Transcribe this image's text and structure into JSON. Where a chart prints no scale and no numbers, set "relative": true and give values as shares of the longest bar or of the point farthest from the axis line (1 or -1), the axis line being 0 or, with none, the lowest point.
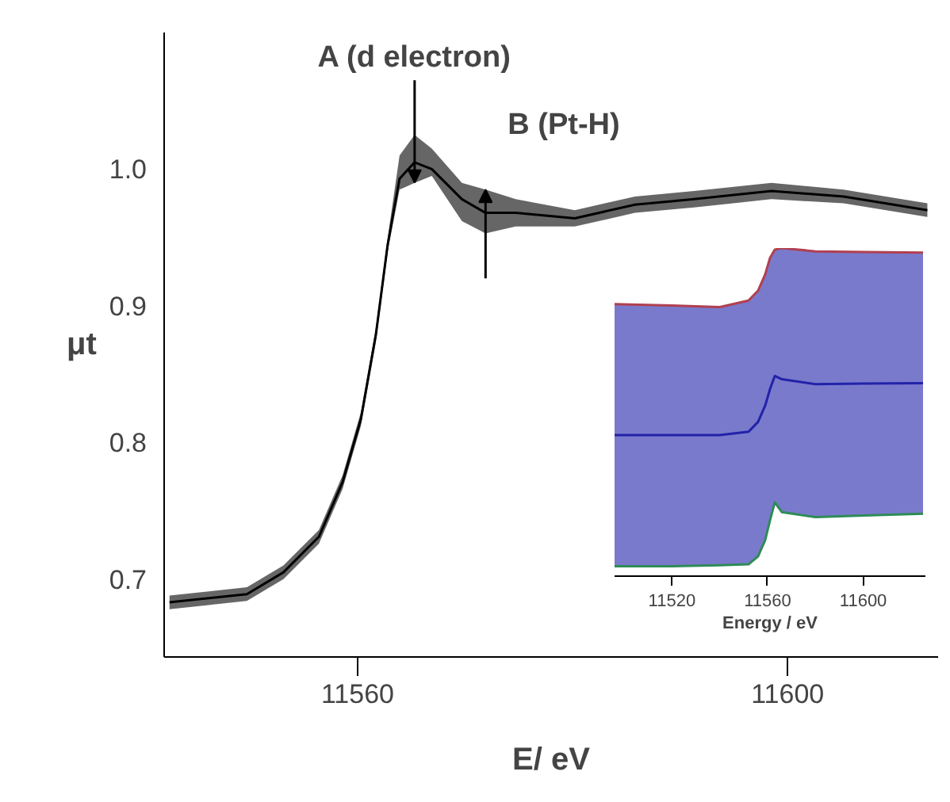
{
  "chart_data": [
    {
      "type": "line",
      "xlabel": "E/ eV",
      "ylabel": "μt",
      "x": [
        11542.5,
        11549.7,
        11553.1,
        11556.4,
        11558.6,
        11560.3,
        11561.7,
        11562.8,
        11563.9,
        11565.3,
        11566.9,
        11569.7,
        11571.9,
        11574.7,
        11580.2,
        11585.8,
        11591.3,
        11598.5,
        11605.2,
        11613
      ],
      "series": [
        {
          "color": "#000000",
          "values": [
            0.683,
            0.689,
            0.705,
            0.731,
            0.771,
            0.817,
            0.879,
            0.945,
            0.993,
            1.005,
            1.0,
            0.978,
            0.968,
            0.968,
            0.964,
            0.974,
            0.978,
            0.984,
            0.98,
            0.97
          ],
          "lower": [
            0.678,
            0.684,
            0.7,
            0.726,
            0.766,
            0.812,
            0.874,
            0.94,
            0.985,
            0.99,
            0.995,
            0.962,
            0.953,
            0.958,
            0.958,
            0.968,
            0.972,
            0.978,
            0.975,
            0.965
          ],
          "upper": [
            0.688,
            0.694,
            0.71,
            0.736,
            0.776,
            0.822,
            0.884,
            0.95,
            1.01,
            1.025,
            1.015,
            0.99,
            0.985,
            0.978,
            0.97,
            0.98,
            0.984,
            0.99,
            0.985,
            0.975
          ]
        }
      ],
      "xlim": [
        11542,
        11614
      ],
      "ylim": [
        0.643,
        1.1
      ],
      "xticks": [
        11560,
        11600
      ],
      "yticks": [
        {
          "value": 0.7,
          "label": "0.7"
        },
        {
          "value": 0.8,
          "label": "0.8"
        },
        {
          "value": 0.9,
          "label": "0.9"
        },
        {
          "value": 1.0,
          "label": "1.0"
        }
      ],
      "annotations": [
        {
          "text": "A (d electron)",
          "x": 11565.3,
          "y": 0.99
        },
        {
          "text": "B (Pt-H)",
          "x": 11571.9,
          "y": 0.985
        }
      ]
    },
    {
      "type": "line",
      "relative": true,
      "xlabel": "Energy / eV",
      "tick_labels": "x",
      "x": [
        11496,
        11520,
        11540,
        11552,
        11556,
        11559,
        11561,
        11563,
        11566,
        11580,
        11600,
        11625
      ],
      "series": [
        {
          "color": "#2222aa",
          "values": [
            0.43,
            0.43,
            0.43,
            0.44,
            0.47,
            0.52,
            0.57,
            0.61,
            0.6,
            0.585,
            0.587,
            0.588
          ],
          "lower": [
            0.03,
            0.03,
            0.033,
            0.036,
            0.06,
            0.11,
            0.17,
            0.225,
            0.195,
            0.18,
            0.185,
            0.19
          ],
          "upper": [
            0.829,
            0.825,
            0.82,
            0.84,
            0.87,
            0.92,
            0.97,
            0.995,
            1.0,
            0.99,
            0.988,
            0.986
          ]
        },
        {
          "color": "#b04050",
          "values": [
            0.829,
            0.825,
            0.82,
            0.84,
            0.87,
            0.92,
            0.97,
            0.995,
            1.0,
            0.99,
            0.988,
            0.986
          ]
        },
        {
          "color": "#2e8b57",
          "values": [
            0.03,
            0.03,
            0.033,
            0.036,
            0.06,
            0.11,
            0.17,
            0.225,
            0.195,
            0.18,
            0.185,
            0.19
          ]
        }
      ],
      "xlim": [
        11496,
        11626
      ],
      "xticks": [
        11520,
        11560,
        11600
      ]
    }
  ]
}
